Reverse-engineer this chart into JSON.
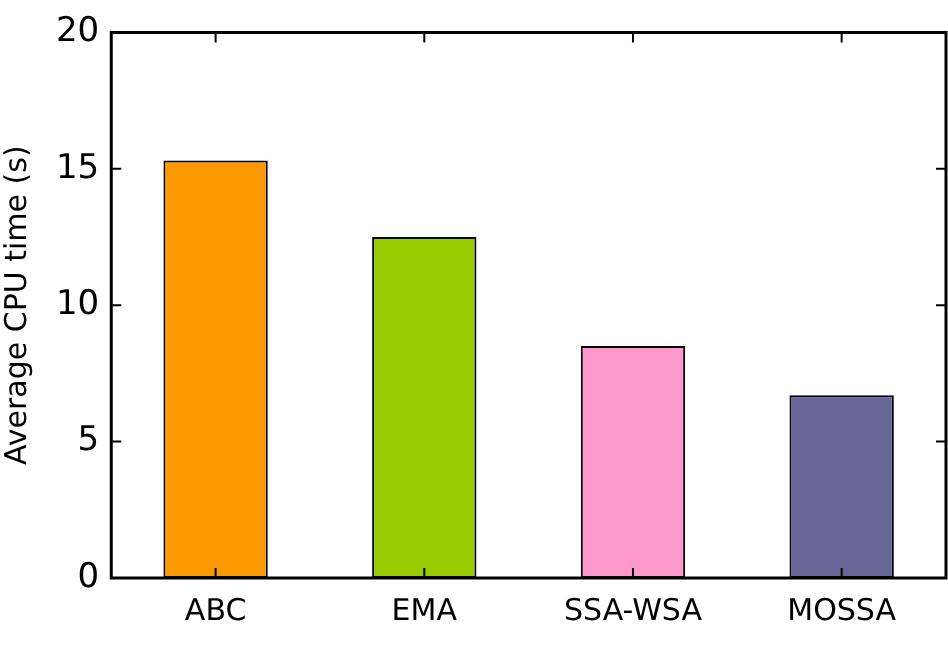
{
  "chart_data": {
    "type": "bar",
    "ylabel": "Average CPU time (s)",
    "categories": [
      "ABC",
      "EMA",
      "SSA-WSA",
      "MOSSA"
    ],
    "values": [
      15.3,
      12.5,
      8.5,
      6.7
    ],
    "colors": [
      "#ff9900",
      "#99cc00",
      "#ff99cc",
      "#666699"
    ],
    "ylim": [
      0,
      20
    ],
    "yticks": [
      0,
      5,
      10,
      15,
      20
    ],
    "grid": false,
    "legend": false
  }
}
